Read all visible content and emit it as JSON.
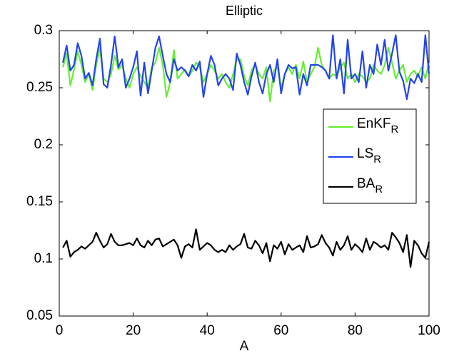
{
  "chart_data": {
    "type": "line",
    "title": "Elliptic",
    "x_label": "A",
    "x": [
      1,
      2,
      3,
      4,
      5,
      6,
      7,
      8,
      9,
      10,
      11,
      12,
      13,
      14,
      15,
      16,
      17,
      18,
      19,
      20,
      21,
      22,
      23,
      24,
      25,
      26,
      27,
      28,
      29,
      30,
      31,
      32,
      33,
      34,
      35,
      36,
      37,
      38,
      39,
      40,
      41,
      42,
      43,
      44,
      45,
      46,
      47,
      48,
      49,
      50,
      51,
      52,
      53,
      54,
      55,
      56,
      57,
      58,
      59,
      60,
      61,
      62,
      63,
      64,
      65,
      66,
      67,
      68,
      69,
      70,
      71,
      72,
      73,
      74,
      75,
      76,
      77,
      78,
      79,
      80,
      81,
      82,
      83,
      84,
      85,
      86,
      87,
      88,
      89,
      90,
      91,
      92,
      93,
      94,
      95,
      96,
      97,
      98,
      99,
      100
    ],
    "series": [
      {
        "name": "EnKF",
        "subscript": "R",
        "color": "#66ee33",
        "values": [
          0.268,
          0.28,
          0.252,
          0.266,
          0.282,
          0.27,
          0.255,
          0.262,
          0.248,
          0.27,
          0.285,
          0.258,
          0.255,
          0.262,
          0.278,
          0.266,
          0.27,
          0.258,
          0.25,
          0.262,
          0.268,
          0.26,
          0.255,
          0.25,
          0.268,
          0.272,
          0.285,
          0.27,
          0.242,
          0.255,
          0.283,
          0.258,
          0.262,
          0.266,
          0.26,
          0.265,
          0.272,
          0.268,
          0.255,
          0.262,
          0.27,
          0.265,
          0.258,
          0.262,
          0.255,
          0.25,
          0.262,
          0.275,
          0.275,
          0.26,
          0.252,
          0.265,
          0.27,
          0.262,
          0.258,
          0.268,
          0.238,
          0.265,
          0.268,
          0.25,
          0.262,
          0.268,
          0.262,
          0.27,
          0.258,
          0.273,
          0.255,
          0.262,
          0.268,
          0.285,
          0.27,
          0.265,
          0.258,
          0.262,
          0.26,
          0.268,
          0.272,
          0.258,
          0.262,
          0.255,
          0.262,
          0.26,
          0.255,
          0.258,
          0.27,
          0.265,
          0.262,
          0.27,
          0.285,
          0.272,
          0.258,
          0.265,
          0.27,
          0.255,
          0.262,
          0.265,
          0.26,
          0.268,
          0.258,
          0.272
        ]
      },
      {
        "name": "LS",
        "subscript": "R",
        "color": "#2244ee",
        "values": [
          0.272,
          0.287,
          0.265,
          0.27,
          0.289,
          0.278,
          0.258,
          0.263,
          0.252,
          0.275,
          0.293,
          0.253,
          0.25,
          0.27,
          0.295,
          0.268,
          0.275,
          0.25,
          0.258,
          0.268,
          0.282,
          0.243,
          0.272,
          0.245,
          0.265,
          0.285,
          0.295,
          0.278,
          0.262,
          0.255,
          0.275,
          0.265,
          0.268,
          0.265,
          0.26,
          0.27,
          0.265,
          0.273,
          0.242,
          0.262,
          0.278,
          0.27,
          0.252,
          0.258,
          0.262,
          0.258,
          0.248,
          0.28,
          0.27,
          0.255,
          0.244,
          0.26,
          0.272,
          0.255,
          0.245,
          0.262,
          0.27,
          0.255,
          0.275,
          0.245,
          0.262,
          0.27,
          0.267,
          0.268,
          0.244,
          0.262,
          0.252,
          0.27,
          0.27,
          0.27,
          0.268,
          0.265,
          0.258,
          0.296,
          0.258,
          0.275,
          0.245,
          0.292,
          0.258,
          0.262,
          0.255,
          0.282,
          0.25,
          0.27,
          0.262,
          0.288,
          0.27,
          0.292,
          0.265,
          0.28,
          0.296,
          0.264,
          0.256,
          0.24,
          0.258,
          0.254,
          0.262,
          0.255,
          0.296,
          0.262
        ]
      },
      {
        "name": "BA",
        "subscript": "R",
        "color": "#000000",
        "values": [
          0.11,
          0.116,
          0.102,
          0.106,
          0.108,
          0.111,
          0.109,
          0.112,
          0.115,
          0.123,
          0.116,
          0.11,
          0.113,
          0.122,
          0.115,
          0.112,
          0.112,
          0.113,
          0.114,
          0.112,
          0.118,
          0.112,
          0.11,
          0.116,
          0.112,
          0.117,
          0.118,
          0.111,
          0.113,
          0.115,
          0.117,
          0.112,
          0.101,
          0.111,
          0.113,
          0.11,
          0.126,
          0.108,
          0.111,
          0.114,
          0.112,
          0.108,
          0.106,
          0.108,
          0.106,
          0.112,
          0.108,
          0.111,
          0.113,
          0.122,
          0.11,
          0.109,
          0.116,
          0.112,
          0.105,
          0.114,
          0.098,
          0.112,
          0.109,
          0.115,
          0.104,
          0.113,
          0.108,
          0.11,
          0.112,
          0.106,
          0.12,
          0.11,
          0.111,
          0.113,
          0.121,
          0.114,
          0.11,
          0.103,
          0.115,
          0.108,
          0.112,
          0.12,
          0.108,
          0.113,
          0.11,
          0.106,
          0.118,
          0.108,
          0.115,
          0.113,
          0.11,
          0.112,
          0.108,
          0.123,
          0.119,
          0.114,
          0.106,
          0.121,
          0.093,
          0.116,
          0.112,
          0.105,
          0.101,
          0.115
        ]
      }
    ],
    "xlim": [
      0,
      100
    ],
    "xticks": [
      0,
      20,
      40,
      60,
      80,
      100
    ],
    "ylim": [
      0.05,
      0.3
    ],
    "yticks": [
      0.05,
      0.1,
      0.15,
      0.2,
      0.25,
      0.3
    ],
    "grid": false,
    "legend": "east"
  }
}
